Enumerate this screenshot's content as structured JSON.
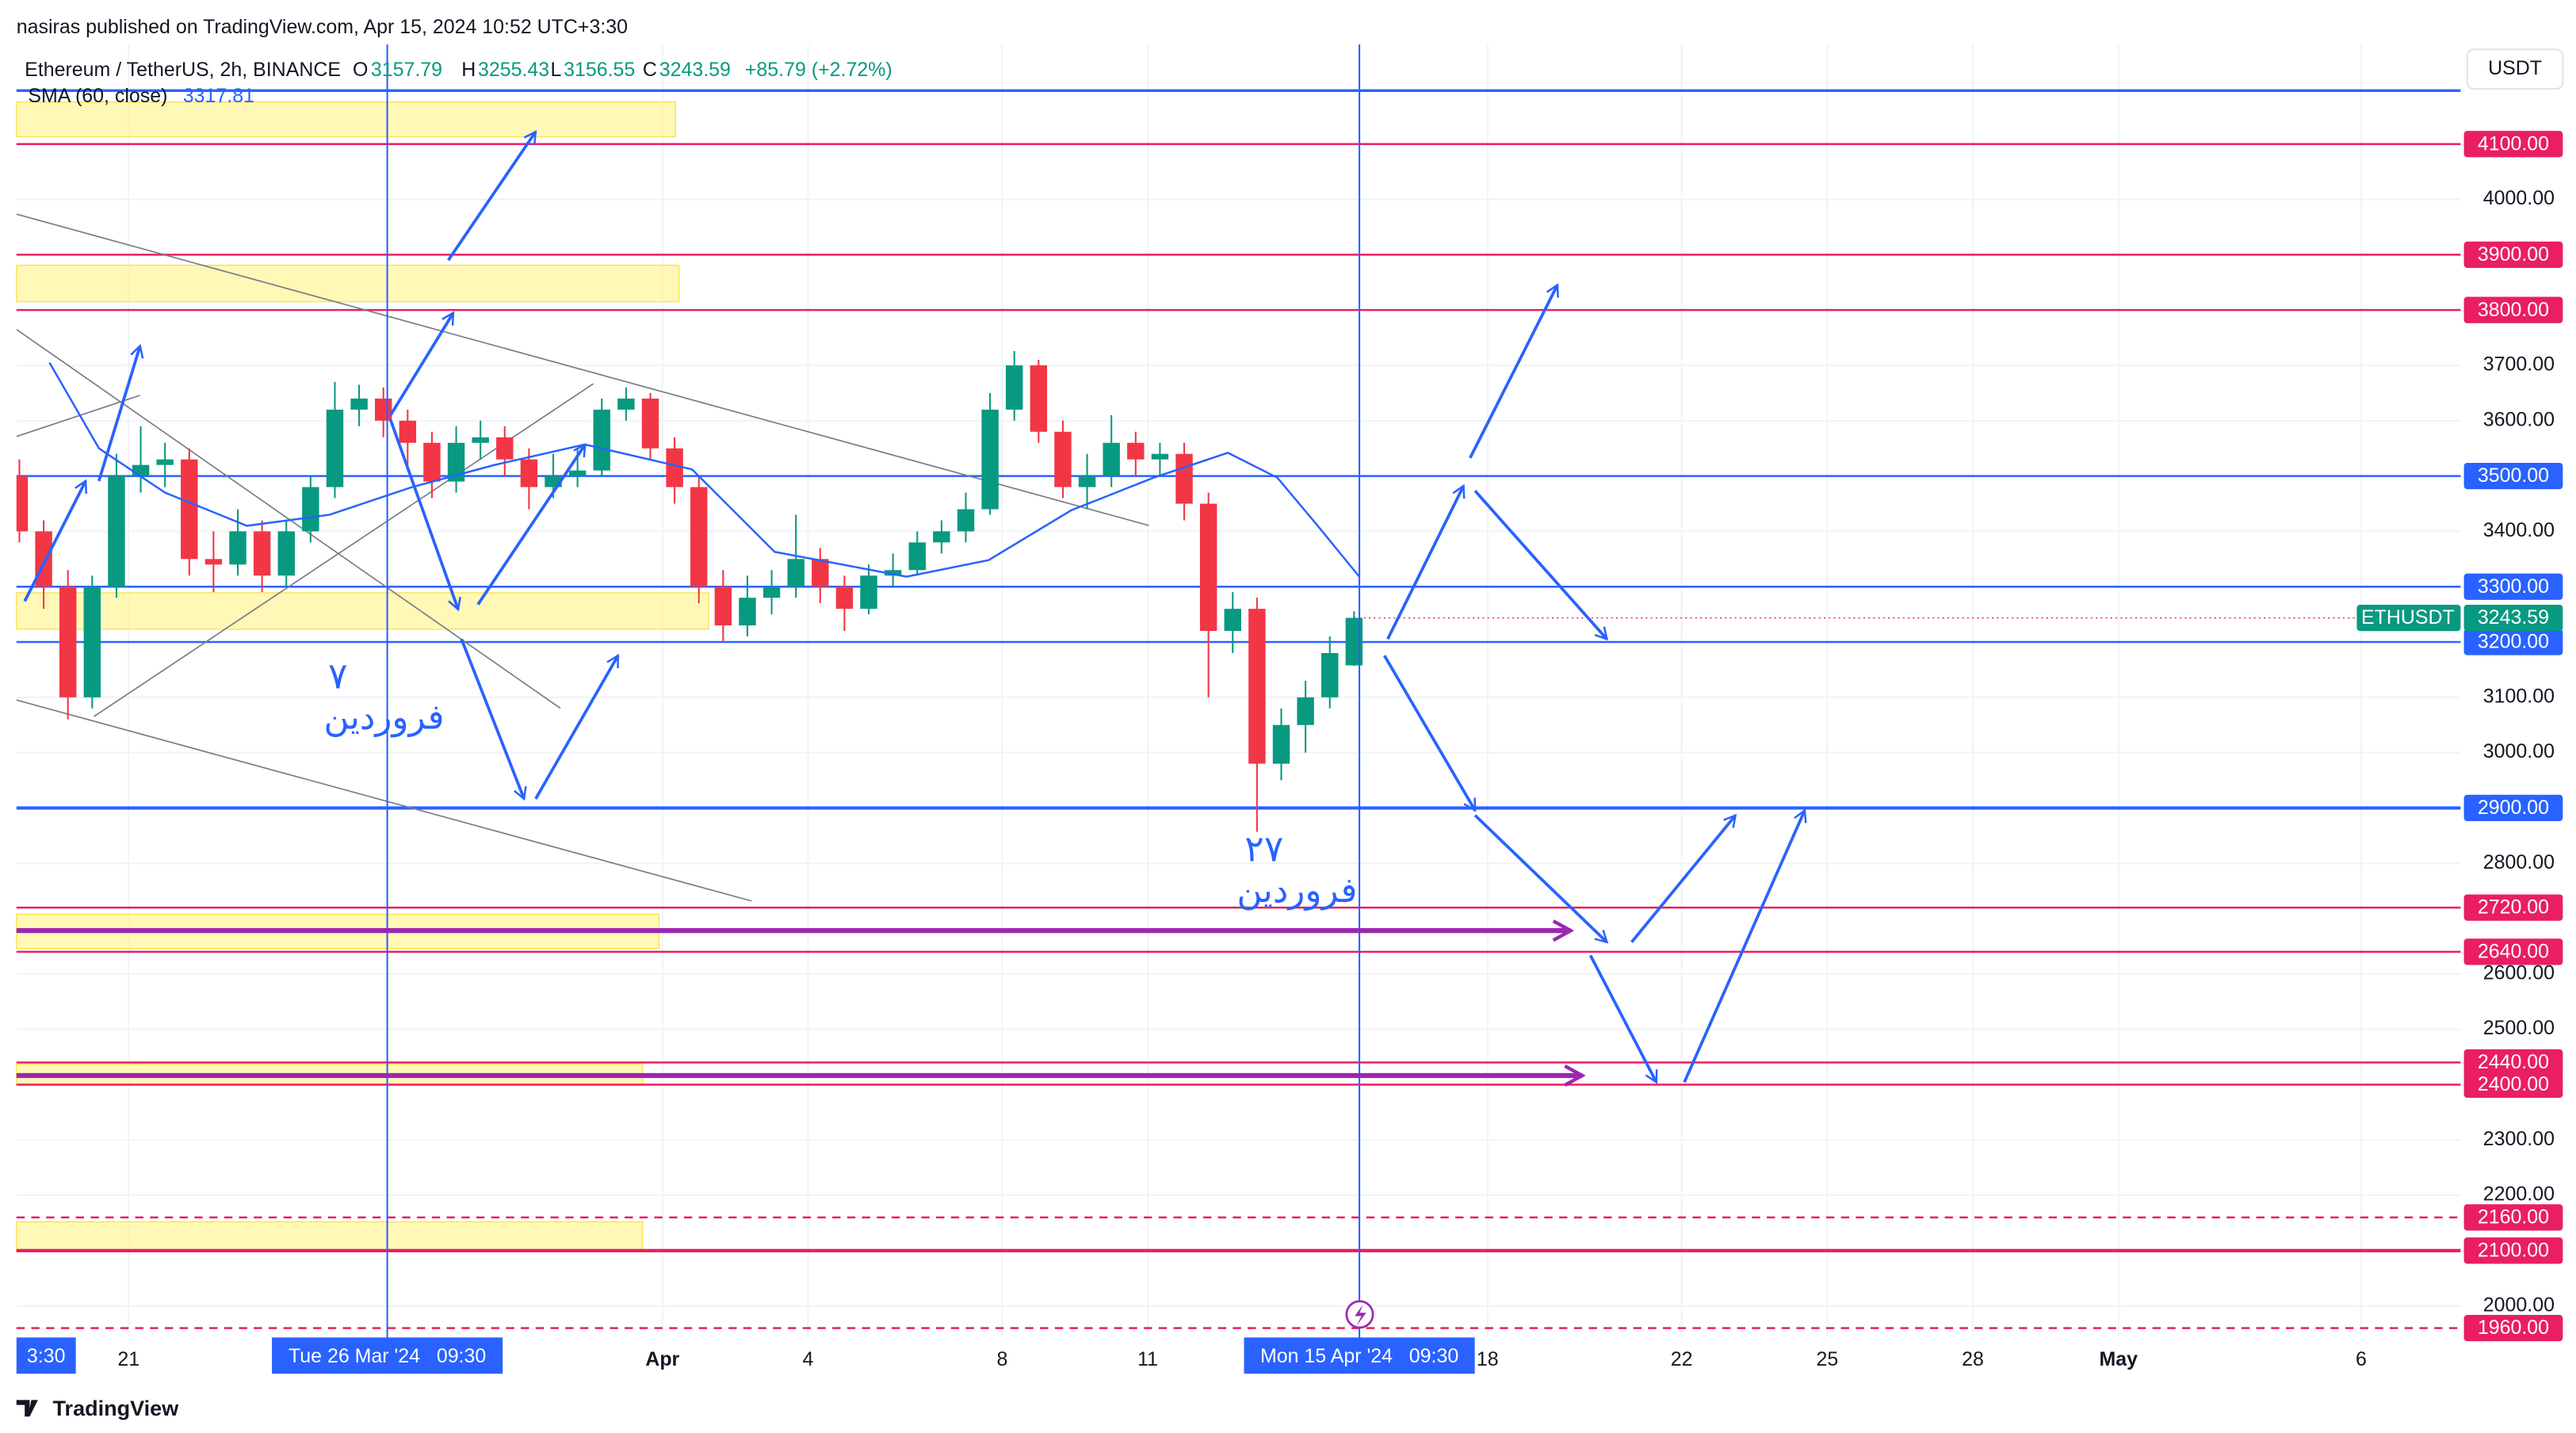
{
  "chart_data": {
    "type": "candlestick",
    "publisher": "nasiras published on TradingView.com, Apr 15, 2024 10:52 UTC+3:30",
    "title": "Ethereum / TetherUS, 2h, BINANCE",
    "ohlc_letters": [
      "O",
      "H",
      "L",
      "C"
    ],
    "change": "+85.79 (+2.72%)",
    "currency": "USDT",
    "brand": "TradingView",
    "up_color": "#089981",
    "down_color": "#f23645",
    "x": [
      18.75,
      19.25,
      19.75,
      20.25,
      20.75,
      21.25,
      21.75,
      22.25,
      22.75,
      23.25,
      23.75,
      24.25,
      24.75,
      25.25,
      25.75,
      26.25,
      26.75,
      27.25,
      27.75,
      28.25,
      28.75,
      29.25,
      29.75,
      30.25,
      30.75,
      31.25,
      31.75,
      32.25,
      32.75,
      33.25,
      33.75,
      34.25,
      34.75,
      35.25,
      35.75,
      36.25,
      36.75,
      37.25,
      37.75,
      38.25,
      38.75,
      39.25,
      39.75,
      40.25,
      40.75,
      41.25,
      41.75,
      42.25,
      42.75,
      43.25,
      43.75,
      44.25,
      44.75,
      45.25,
      45.75,
      46.25
    ],
    "open": [
      3500,
      3400,
      3300,
      3100,
      3300,
      3500,
      3520,
      3530,
      3350,
      3340,
      3400,
      3320,
      3400,
      3480,
      3620,
      3640,
      3600,
      3560,
      3490,
      3560,
      3570,
      3530,
      3480,
      3500,
      3510,
      3620,
      3640,
      3550,
      3480,
      3300,
      3230,
      3280,
      3300,
      3350,
      3300,
      3260,
      3320,
      3330,
      3380,
      3400,
      3440,
      3620,
      3700,
      3580,
      3480,
      3500,
      3560,
      3530,
      3540,
      3450,
      3220,
      3260,
      2980,
      3050,
      3100,
      3157.79
    ],
    "high": [
      3530,
      3420,
      3330,
      3320,
      3540,
      3590,
      3560,
      3550,
      3400,
      3440,
      3420,
      3420,
      3500,
      3670,
      3665,
      3660,
      3620,
      3580,
      3590,
      3600,
      3590,
      3550,
      3540,
      3550,
      3640,
      3660,
      3650,
      3570,
      3500,
      3330,
      3320,
      3330,
      3430,
      3370,
      3320,
      3340,
      3360,
      3400,
      3420,
      3470,
      3650,
      3726,
      3710,
      3600,
      3540,
      3610,
      3580,
      3560,
      3560,
      3470,
      3290,
      3280,
      3080,
      3130,
      3210,
      3255.43
    ],
    "low": [
      3380,
      3260,
      3060,
      3080,
      3280,
      3470,
      3480,
      3320,
      3290,
      3320,
      3290,
      3300,
      3380,
      3460,
      3590,
      3570,
      3520,
      3460,
      3470,
      3530,
      3500,
      3440,
      3460,
      3480,
      3500,
      3600,
      3530,
      3450,
      3270,
      3200,
      3210,
      3250,
      3280,
      3270,
      3220,
      3250,
      3300,
      3320,
      3360,
      3380,
      3430,
      3600,
      3560,
      3460,
      3440,
      3480,
      3500,
      3500,
      3420,
      3100,
      3180,
      2857,
      2950,
      3000,
      3080,
      3156.55
    ],
    "close": [
      3400,
      3300,
      3100,
      3300,
      3500,
      3520,
      3530,
      3350,
      3340,
      3400,
      3320,
      3400,
      3480,
      3620,
      3640,
      3600,
      3560,
      3490,
      3560,
      3570,
      3530,
      3480,
      3500,
      3510,
      3620,
      3640,
      3550,
      3480,
      3300,
      3230,
      3280,
      3300,
      3350,
      3300,
      3260,
      3320,
      3330,
      3380,
      3400,
      3440,
      3620,
      3700,
      3580,
      3480,
      3500,
      3560,
      3530,
      3540,
      3450,
      3220,
      3260,
      2980,
      3050,
      3100,
      3180,
      3243.59
    ],
    "sma": {
      "name": "SMA (60, close)",
      "color": "#2962ff",
      "x": [
        19.37,
        20.39,
        21.75,
        23.44,
        25.14,
        26.84,
        28.54,
        30.4,
        32.61,
        34.31,
        37.03,
        38.72,
        40.42,
        42.12,
        43.65,
        44.67,
        45.52,
        46.36
      ],
      "values": [
        3705,
        3550,
        3470,
        3410,
        3430,
        3480,
        3520,
        3557,
        3512,
        3363,
        3318,
        3348,
        3438,
        3497,
        3542,
        3497,
        3408,
        3317.81
      ]
    },
    "xlim": [
      18.69,
      69.05
    ],
    "xticks": [
      {
        "value": 21,
        "label": "21"
      },
      {
        "value": 32,
        "label": "Apr"
      },
      {
        "value": 35,
        "label": "4"
      },
      {
        "value": 39,
        "label": "8"
      },
      {
        "value": 42,
        "label": "11"
      },
      {
        "value": 49,
        "label": "18"
      },
      {
        "value": 53,
        "label": "22"
      },
      {
        "value": 56,
        "label": "25"
      },
      {
        "value": 59,
        "label": "28"
      },
      {
        "value": 62,
        "label": "May"
      },
      {
        "value": 67,
        "label": "6"
      }
    ],
    "ylim": [
      1943,
      4280
    ],
    "yticks": [
      {
        "value": 4000,
        "label": "4000.00"
      },
      {
        "value": 3700,
        "label": "3700.00"
      },
      {
        "value": 3600,
        "label": "3600.00"
      },
      {
        "value": 3400,
        "label": "3400.00"
      },
      {
        "value": 3100,
        "label": "3100.00"
      },
      {
        "value": 3000,
        "label": "3000.00"
      },
      {
        "value": 2800,
        "label": "2800.00"
      },
      {
        "value": 2600,
        "label": "2600.00"
      },
      {
        "value": 2500,
        "label": "2500.00"
      },
      {
        "value": 2300,
        "label": "2300.00"
      },
      {
        "value": 2200,
        "label": "2200.00"
      },
      {
        "value": 2000,
        "label": "2000.00"
      }
    ],
    "grid": true,
    "levels": [
      {
        "value": 4100,
        "label": "4100.00",
        "color": "#e91e63",
        "style": "solid"
      },
      {
        "value": 3900,
        "label": "3900.00",
        "color": "#e91e63",
        "style": "solid"
      },
      {
        "value": 3800,
        "label": "3800.00",
        "color": "#e91e63",
        "style": "solid"
      },
      {
        "value": 3500,
        "label": "3500.00",
        "color": "#2962ff",
        "style": "solid"
      },
      {
        "value": 3300,
        "label": "3300.00",
        "color": "#2962ff",
        "style": "solid"
      },
      {
        "value": 3200,
        "label": "3200.00",
        "color": "#2962ff",
        "style": "solid"
      },
      {
        "value": 2900,
        "label": "2900.00",
        "color": "#2962ff",
        "style": "thick"
      },
      {
        "value": 2720,
        "label": "2720.00",
        "color": "#e91e63",
        "style": "solid"
      },
      {
        "value": 2640,
        "label": "2640.00",
        "color": "#e91e63",
        "style": "solid"
      },
      {
        "value": 2440,
        "label": "2440.00",
        "color": "#e91e63",
        "style": "solid"
      },
      {
        "value": 2400,
        "label": "2400.00",
        "color": "#e91e63",
        "style": "solid"
      },
      {
        "value": 2160,
        "label": "2160.00",
        "color": "#e91e63",
        "style": "dashed"
      },
      {
        "value": 2100,
        "label": "2100.00",
        "color": "#e91e63",
        "style": "thick"
      },
      {
        "value": 1960,
        "label": "1960.00",
        "color": "#e91e63",
        "style": "dashed"
      }
    ],
    "zones": [
      {
        "top": 4176,
        "bottom": 4113,
        "x0": 18.69,
        "x1": 32.27
      },
      {
        "top": 3881,
        "bottom": 3815,
        "x0": 18.69,
        "x1": 32.34
      },
      {
        "top": 3289,
        "bottom": 3223,
        "x0": 18.69,
        "x1": 32.95
      },
      {
        "top": 2708,
        "bottom": 2646,
        "x0": 18.69,
        "x1": 31.93
      },
      {
        "top": 2437,
        "bottom": 2399,
        "x0": 18.69,
        "x1": 31.59
      },
      {
        "top": 2152,
        "bottom": 2098,
        "x0": 18.69,
        "x1": 31.59
      }
    ],
    "zone_color": "#fff59d",
    "crosshairs": [
      {
        "x": 26.33,
        "label": "Tue 26 Mar '24   09:30"
      },
      {
        "x": 46.36,
        "label": "Mon 15 Apr '24   09:30"
      }
    ],
    "left_time_label": "3:30",
    "last": {
      "name": "ETHUSDT",
      "value": 3243.59
    },
    "annotations": [
      {
        "day": "۷",
        "month": "فروردین"
      },
      {
        "day": "۲۷",
        "month": "فروردین"
      }
    ]
  }
}
